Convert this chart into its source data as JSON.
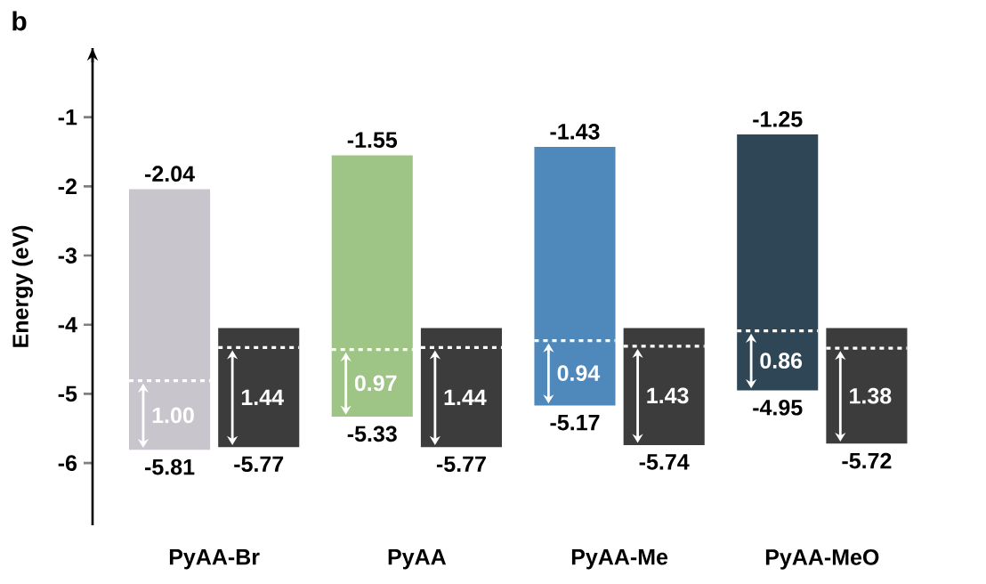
{
  "chart_data": {
    "type": "bar",
    "title": "b",
    "ylabel": "Energy (eV)",
    "categories": [
      "PyAA-Br",
      "PyAA",
      "PyAA-Me",
      "PyAA-MeO"
    ],
    "series": [
      {
        "colors": [
          "#c8c6cc",
          "#9ec585",
          "#4f89bb",
          "#2e4656"
        ],
        "base": [
          -5.81,
          -5.33,
          -5.17,
          -4.95
        ],
        "values": [
          3.77,
          3.78,
          3.74,
          3.7
        ]
      },
      {
        "color": "#3c3c3c",
        "base": [
          -5.77,
          -5.77,
          -5.74,
          -5.72
        ],
        "values": [
          1.72,
          1.72,
          1.69,
          1.67
        ]
      }
    ],
    "ylim": [
      -6.9,
      0
    ],
    "yticks": [
      -1,
      -2,
      -3,
      -4,
      -5,
      -6
    ],
    "annotations": [
      {
        "text": "-2.04",
        "x": "PyAA-Br",
        "y": -2.04
      },
      {
        "text": "-5.81",
        "x": "PyAA-Br",
        "y": -5.81
      },
      {
        "text": "1.00",
        "x": "PyAA-Br",
        "y": -4.81
      },
      {
        "text": "-5.77",
        "x": "PyAA-Br",
        "y": -5.77
      },
      {
        "text": "1.44",
        "x": "PyAA-Br",
        "y": -4.33
      },
      {
        "text": "-1.55",
        "x": "PyAA",
        "y": -1.55
      },
      {
        "text": "-5.33",
        "x": "PyAA",
        "y": -5.33
      },
      {
        "text": "0.97",
        "x": "PyAA",
        "y": -4.36
      },
      {
        "text": "-5.77",
        "x": "PyAA",
        "y": -5.77
      },
      {
        "text": "1.44",
        "x": "PyAA",
        "y": -4.33
      },
      {
        "text": "-1.43",
        "x": "PyAA-Me",
        "y": -1.43
      },
      {
        "text": "-5.17",
        "x": "PyAA-Me",
        "y": -5.17
      },
      {
        "text": "0.94",
        "x": "PyAA-Me",
        "y": -4.23
      },
      {
        "text": "-5.74",
        "x": "PyAA-Me",
        "y": -5.74
      },
      {
        "text": "1.43",
        "x": "PyAA-Me",
        "y": -4.31
      },
      {
        "text": "-1.25",
        "x": "PyAA-MeO",
        "y": -1.25
      },
      {
        "text": "-4.95",
        "x": "PyAA-MeO",
        "y": -4.95
      },
      {
        "text": "0.86",
        "x": "PyAA-MeO",
        "y": -4.09
      },
      {
        "text": "-5.72",
        "x": "PyAA-MeO",
        "y": -5.72
      },
      {
        "text": "1.38",
        "x": "PyAA-MeO",
        "y": -4.34
      }
    ]
  }
}
